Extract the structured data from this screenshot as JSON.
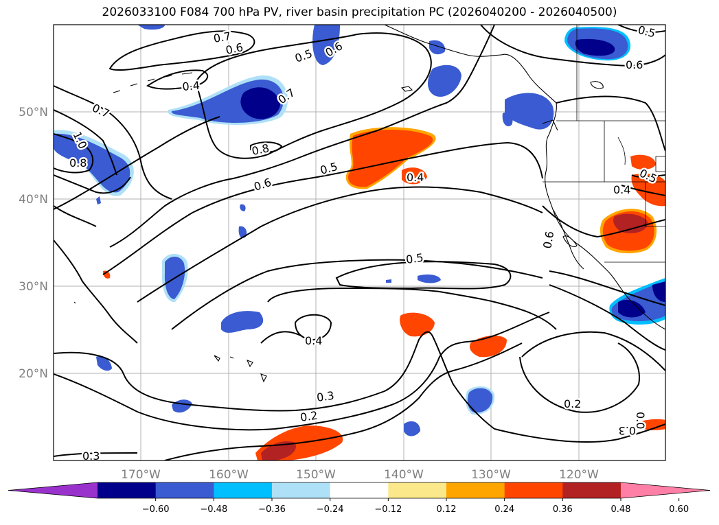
{
  "title": "2026033100 F084 700 hPa PV, river basin precipitation PC (2026040200 - 2026040500)",
  "lon_labels": [
    "170°W",
    "160°W",
    "150°W",
    "140°W",
    "130°W",
    "120°W"
  ],
  "lat_labels": [
    "50°N",
    "40°N",
    "30°N",
    "20°N"
  ],
  "contour_labels": [
    "0.7",
    "0.6",
    "0.5",
    "0.6",
    "0.4",
    "0.7",
    "0.7",
    "1.0",
    "0.8",
    "0.8",
    "0.6",
    "0.5",
    "0.4",
    "0.5",
    "0.6",
    "0.4",
    "0.5",
    "0.6",
    "0.4",
    "0.3",
    "0.2",
    "0.2",
    "0.0",
    "0.3",
    "0.3",
    "0.5"
  ],
  "colorbar": {
    "ticks": [
      "−0.60",
      "−0.48",
      "−0.36",
      "−0.24",
      "−0.12",
      "0.12",
      "0.24",
      "0.36",
      "0.48",
      "0.60"
    ],
    "colors": [
      "#9932cc",
      "#00008b",
      "#3a5bd1",
      "#00bfff",
      "#aee0f7",
      "#ffffff",
      "#fbe88a",
      "#ffa500",
      "#ff4500",
      "#b22222",
      "#ff7fa6"
    ]
  }
}
